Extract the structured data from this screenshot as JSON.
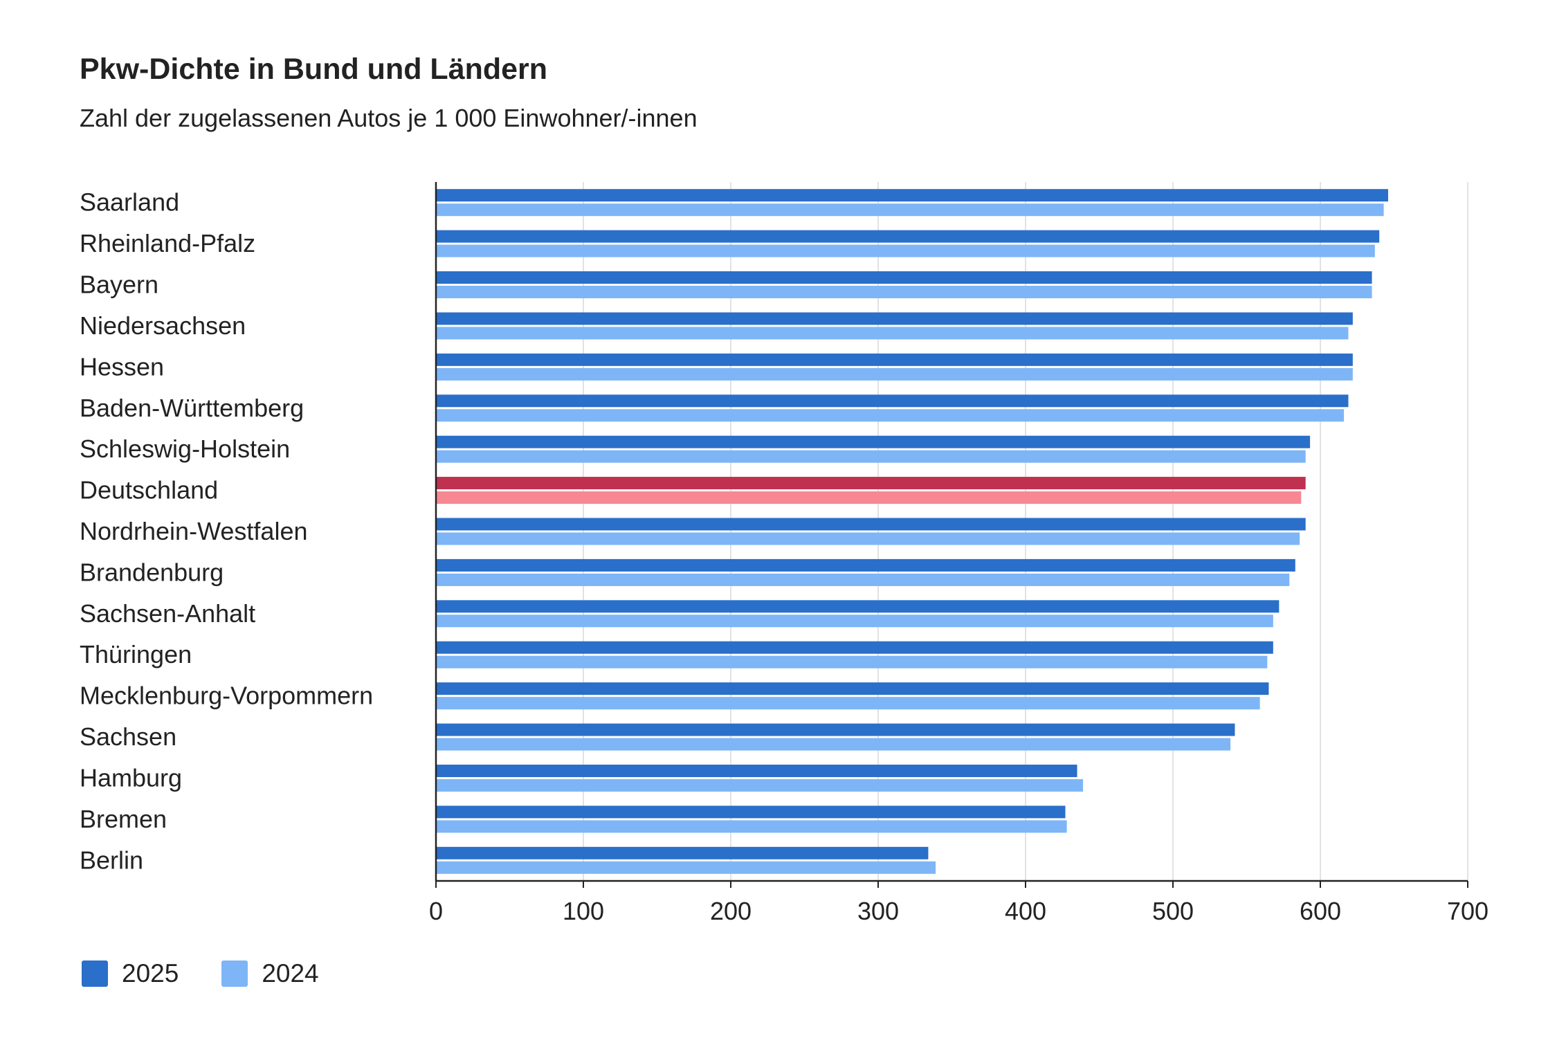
{
  "title": "Pkw-Dichte in Bund und Ländern",
  "subtitle": "Zahl der zugelassenen Autos je 1 000 Einwohner/-innen",
  "colors": {
    "series_2025": "#2a6fc9",
    "series_2024": "#7db5f7",
    "highlight_2025": "#c0304f",
    "highlight_2024": "#f78792",
    "gridline": "#d9d9d9",
    "axis": "#222222"
  },
  "chart_data": {
    "type": "bar",
    "orientation": "horizontal",
    "highlight_category": "Deutschland",
    "categories": [
      "Saarland",
      "Rheinland-Pfalz",
      "Bayern",
      "Niedersachsen",
      "Hessen",
      "Baden-Württemberg",
      "Schleswig-Holstein",
      "Deutschland",
      "Nordrhein-Westfalen",
      "Brandenburg",
      "Sachsen-Anhalt",
      "Thüringen",
      "Mecklenburg-Vorpommern",
      "Sachsen",
      "Hamburg",
      "Bremen",
      "Berlin"
    ],
    "series": [
      {
        "name": "2025",
        "values": [
          646,
          640,
          635,
          622,
          622,
          619,
          593,
          590,
          590,
          583,
          572,
          568,
          565,
          542,
          435,
          427,
          334
        ]
      },
      {
        "name": "2024",
        "values": [
          643,
          637,
          635,
          619,
          622,
          616,
          590,
          587,
          586,
          579,
          568,
          564,
          559,
          539,
          439,
          428,
          339
        ]
      }
    ],
    "xlim": [
      0,
      700
    ],
    "xticks": [
      "0",
      "100",
      "200",
      "300",
      "400",
      "500",
      "600",
      "700"
    ],
    "grid": true,
    "legend_position": "bottom-left"
  }
}
